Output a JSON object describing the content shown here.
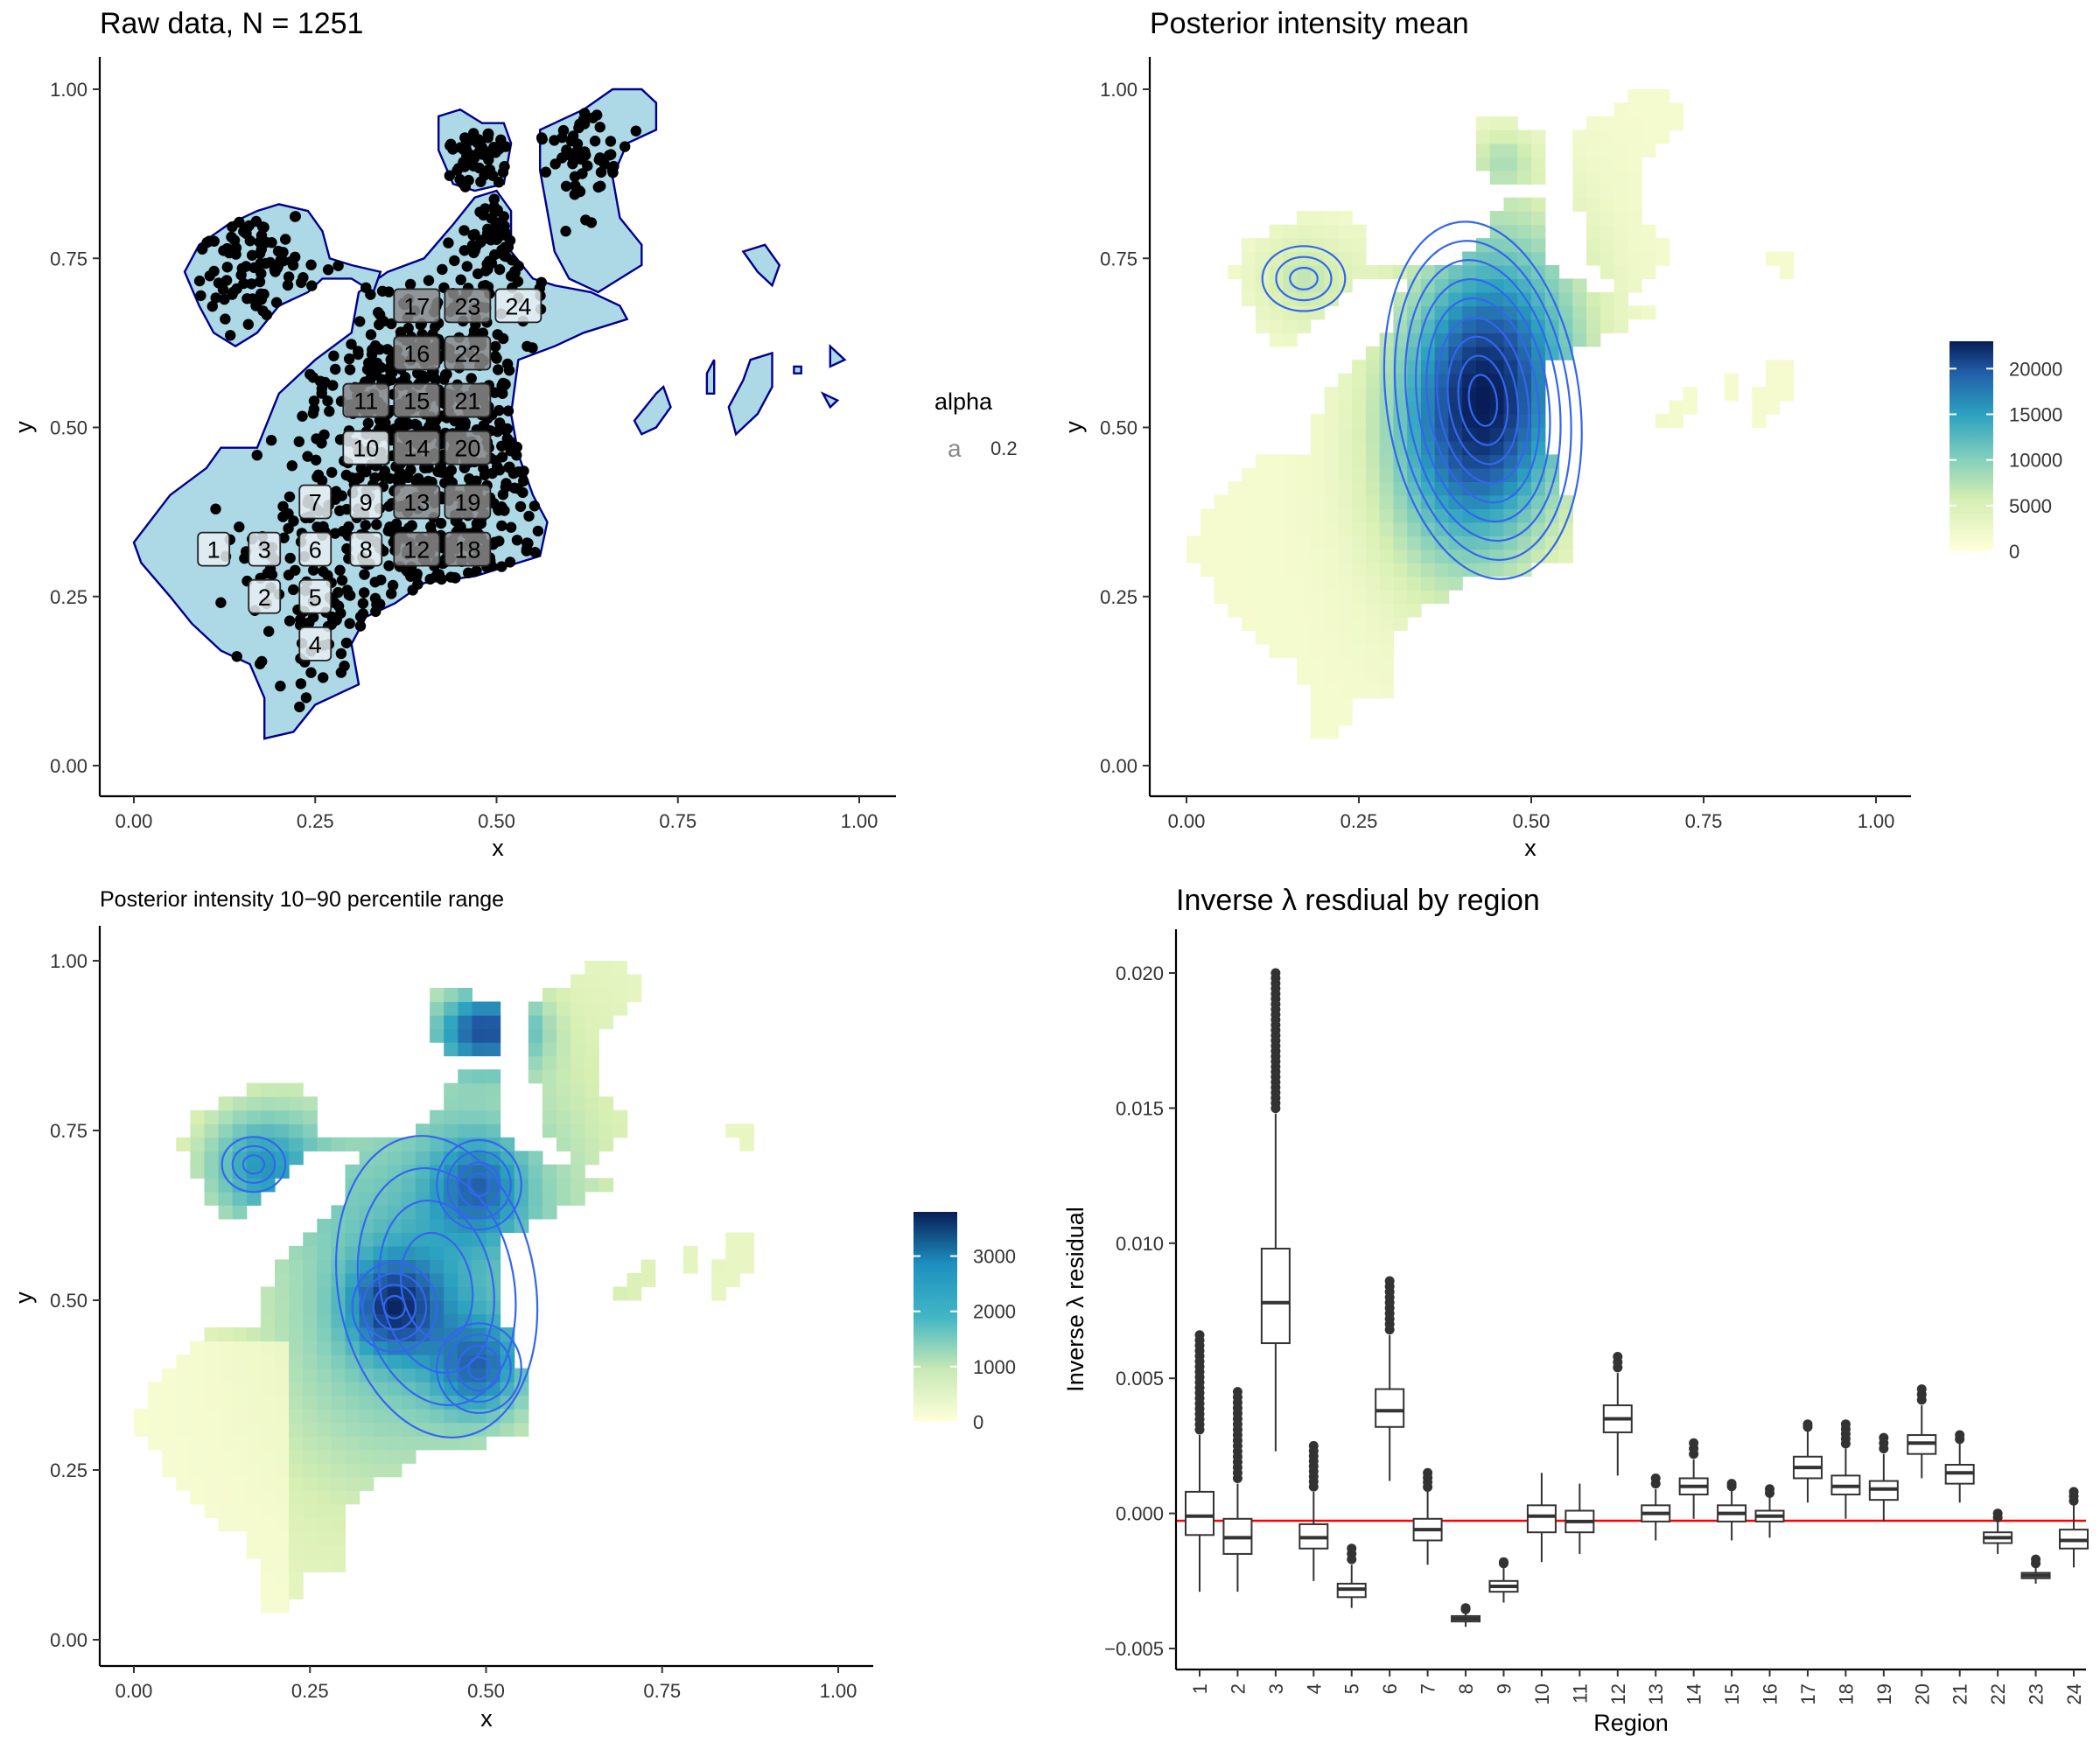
{
  "chart_data": [
    {
      "type": "scatter",
      "title": "Raw data, N = 1251",
      "xlabel": "x",
      "ylabel": "y",
      "xlim": [
        0,
        1
      ],
      "ylim": [
        0,
        1
      ],
      "xticks": [
        "0.00",
        "0.25",
        "0.50",
        "0.75",
        "1.00"
      ],
      "yticks": [
        "0.00",
        "0.25",
        "0.50",
        "0.75",
        "1.00"
      ],
      "legend": {
        "title": "alpha",
        "key": "a",
        "label": "0.2",
        "position": "right"
      },
      "region_colors": {
        "fill": "#add8e6",
        "outline": "#00008b",
        "points": "#000000"
      },
      "regions": [
        {
          "label": "1",
          "x": 0.11,
          "y": 0.32
        },
        {
          "label": "2",
          "x": 0.18,
          "y": 0.25
        },
        {
          "label": "3",
          "x": 0.18,
          "y": 0.32
        },
        {
          "label": "4",
          "x": 0.25,
          "y": 0.18
        },
        {
          "label": "5",
          "x": 0.25,
          "y": 0.25
        },
        {
          "label": "6",
          "x": 0.25,
          "y": 0.32
        },
        {
          "label": "7",
          "x": 0.25,
          "y": 0.39
        },
        {
          "label": "8",
          "x": 0.32,
          "y": 0.32
        },
        {
          "label": "9",
          "x": 0.32,
          "y": 0.39
        },
        {
          "label": "10",
          "x": 0.32,
          "y": 0.47
        },
        {
          "label": "11",
          "x": 0.32,
          "y": 0.54
        },
        {
          "label": "12",
          "x": 0.39,
          "y": 0.32
        },
        {
          "label": "13",
          "x": 0.39,
          "y": 0.39
        },
        {
          "label": "14",
          "x": 0.39,
          "y": 0.47
        },
        {
          "label": "15",
          "x": 0.39,
          "y": 0.54
        },
        {
          "label": "16",
          "x": 0.39,
          "y": 0.61
        },
        {
          "label": "17",
          "x": 0.39,
          "y": 0.68
        },
        {
          "label": "18",
          "x": 0.46,
          "y": 0.32
        },
        {
          "label": "19",
          "x": 0.46,
          "y": 0.39
        },
        {
          "label": "20",
          "x": 0.46,
          "y": 0.47
        },
        {
          "label": "21",
          "x": 0.46,
          "y": 0.54
        },
        {
          "label": "22",
          "x": 0.46,
          "y": 0.61
        },
        {
          "label": "23",
          "x": 0.46,
          "y": 0.68
        },
        {
          "label": "24",
          "x": 0.53,
          "y": 0.68
        }
      ]
    },
    {
      "type": "heatmap",
      "title": "Posterior intensity mean",
      "xlabel": "x",
      "ylabel": "y",
      "xlim": [
        0,
        1
      ],
      "ylim": [
        0,
        1
      ],
      "xticks": [
        "0.00",
        "0.25",
        "0.50",
        "0.75",
        "1.00"
      ],
      "yticks": [
        "0.00",
        "0.25",
        "0.50",
        "0.75",
        "1.00"
      ],
      "colorbar": {
        "ticks": [
          "0",
          "5000",
          "10000",
          "15000",
          "20000"
        ],
        "range": [
          0,
          23000
        ],
        "position": "right"
      },
      "peak": {
        "x": 0.43,
        "y": 0.54,
        "value": 22000
      }
    },
    {
      "type": "heatmap",
      "title": "Posterior intensity 10−90 percentile range",
      "xlabel": "x",
      "ylabel": "y",
      "xlim": [
        0,
        1
      ],
      "ylim": [
        0,
        1
      ],
      "xticks": [
        "0.00",
        "0.25",
        "0.50",
        "0.75",
        "1.00"
      ],
      "yticks": [
        "0.00",
        "0.25",
        "0.50",
        "0.75",
        "1.00"
      ],
      "colorbar": {
        "ticks": [
          "0",
          "1000",
          "2000",
          "3000"
        ],
        "range": [
          0,
          3800
        ],
        "position": "right"
      },
      "peaks": [
        {
          "x": 0.37,
          "y": 0.49,
          "value": 3300
        },
        {
          "x": 0.49,
          "y": 0.4,
          "value": 3000
        },
        {
          "x": 0.49,
          "y": 0.67,
          "value": 2800
        }
      ]
    },
    {
      "type": "box",
      "title": "Inverse λ resdiual by region",
      "xlabel": "Region",
      "ylabel": "Inverse λ residual",
      "ylim": [
        -0.0055,
        0.0212
      ],
      "yticks": [
        "−0.005",
        "0.000",
        "0.005",
        "0.010",
        "0.015",
        "0.020"
      ],
      "reference_line": {
        "y": 0,
        "color": "#ff0000"
      },
      "categories": [
        "1",
        "2",
        "3",
        "4",
        "5",
        "6",
        "7",
        "8",
        "9",
        "10",
        "11",
        "12",
        "13",
        "14",
        "15",
        "16",
        "17",
        "18",
        "19",
        "20",
        "21",
        "22",
        "23",
        "24"
      ],
      "boxes": [
        {
          "q1": -0.0008,
          "median": -0.0001,
          "q3": 0.0008,
          "low": -0.0029,
          "high": 0.0029,
          "out_high": 0.0066
        },
        {
          "q1": -0.0015,
          "median": -0.0009,
          "q3": -0.0002,
          "low": -0.0029,
          "high": 0.0011,
          "out_high": 0.0045
        },
        {
          "q1": 0.0063,
          "median": 0.0078,
          "q3": 0.0098,
          "low": 0.0023,
          "high": 0.0148,
          "out_high": 0.02
        },
        {
          "q1": -0.0013,
          "median": -0.0009,
          "q3": -0.0004,
          "low": -0.0025,
          "high": 0.0008,
          "out_high": 0.0025
        },
        {
          "q1": -0.0031,
          "median": -0.0028,
          "q3": -0.0026,
          "low": -0.0035,
          "high": -0.0019,
          "out_high": -0.0013
        },
        {
          "q1": 0.0032,
          "median": 0.0038,
          "q3": 0.0046,
          "low": 0.0012,
          "high": 0.0066,
          "out_high": 0.0086
        },
        {
          "q1": -0.001,
          "median": -0.0006,
          "q3": -0.0002,
          "low": -0.0019,
          "high": 0.0008,
          "out_high": 0.0015
        },
        {
          "q1": -0.004,
          "median": -0.0039,
          "q3": -0.0038,
          "low": -0.0042,
          "high": -0.0036,
          "out_high": -0.0035
        },
        {
          "q1": -0.0029,
          "median": -0.0027,
          "q3": -0.0025,
          "low": -0.0033,
          "high": -0.0019,
          "out_high": -0.0018
        },
        {
          "q1": -0.0007,
          "median": -0.0001,
          "q3": 0.0003,
          "low": -0.0018,
          "high": 0.0015,
          "out_high": 0.0015
        },
        {
          "q1": -0.0007,
          "median": -0.0003,
          "q3": 0.0001,
          "low": -0.0015,
          "high": 0.0011,
          "out_high": 0.0011
        },
        {
          "q1": 0.003,
          "median": 0.0035,
          "q3": 0.004,
          "low": 0.0014,
          "high": 0.0052,
          "out_high": 0.0058
        },
        {
          "q1": -0.0003,
          "median": 0.0,
          "q3": 0.0003,
          "low": -0.001,
          "high": 0.0009,
          "out_high": 0.0013
        },
        {
          "q1": 0.0007,
          "median": 0.001,
          "q3": 0.0013,
          "low": -0.0002,
          "high": 0.002,
          "out_high": 0.0026
        },
        {
          "q1": -0.0003,
          "median": 0.0,
          "q3": 0.0003,
          "low": -0.001,
          "high": 0.0009,
          "out_high": 0.0011
        },
        {
          "q1": -0.0003,
          "median": -0.0001,
          "q3": 0.0001,
          "low": -0.0009,
          "high": 0.0006,
          "out_high": 0.0009
        },
        {
          "q1": 0.0013,
          "median": 0.0017,
          "q3": 0.0021,
          "low": 0.0004,
          "high": 0.0031,
          "out_high": 0.0033
        },
        {
          "q1": 0.0007,
          "median": 0.001,
          "q3": 0.0014,
          "low": -0.0002,
          "high": 0.0024,
          "out_high": 0.0033
        },
        {
          "q1": 0.0005,
          "median": 0.0009,
          "q3": 0.0012,
          "low": -0.0003,
          "high": 0.0022,
          "out_high": 0.0028
        },
        {
          "q1": 0.0022,
          "median": 0.0026,
          "q3": 0.0029,
          "low": 0.0013,
          "high": 0.004,
          "out_high": 0.0046
        },
        {
          "q1": 0.0011,
          "median": 0.0015,
          "q3": 0.0018,
          "low": 0.0004,
          "high": 0.0026,
          "out_high": 0.0029
        },
        {
          "q1": -0.0011,
          "median": -0.0009,
          "q3": -0.0007,
          "low": -0.0015,
          "high": -0.0003,
          "out_high": 0.0
        },
        {
          "q1": -0.0024,
          "median": -0.0023,
          "q3": -0.0022,
          "low": -0.0026,
          "high": -0.002,
          "out_high": -0.0017
        },
        {
          "q1": -0.0013,
          "median": -0.001,
          "q3": -0.0006,
          "low": -0.002,
          "high": 0.0003,
          "out_high": 0.0008
        }
      ]
    }
  ]
}
